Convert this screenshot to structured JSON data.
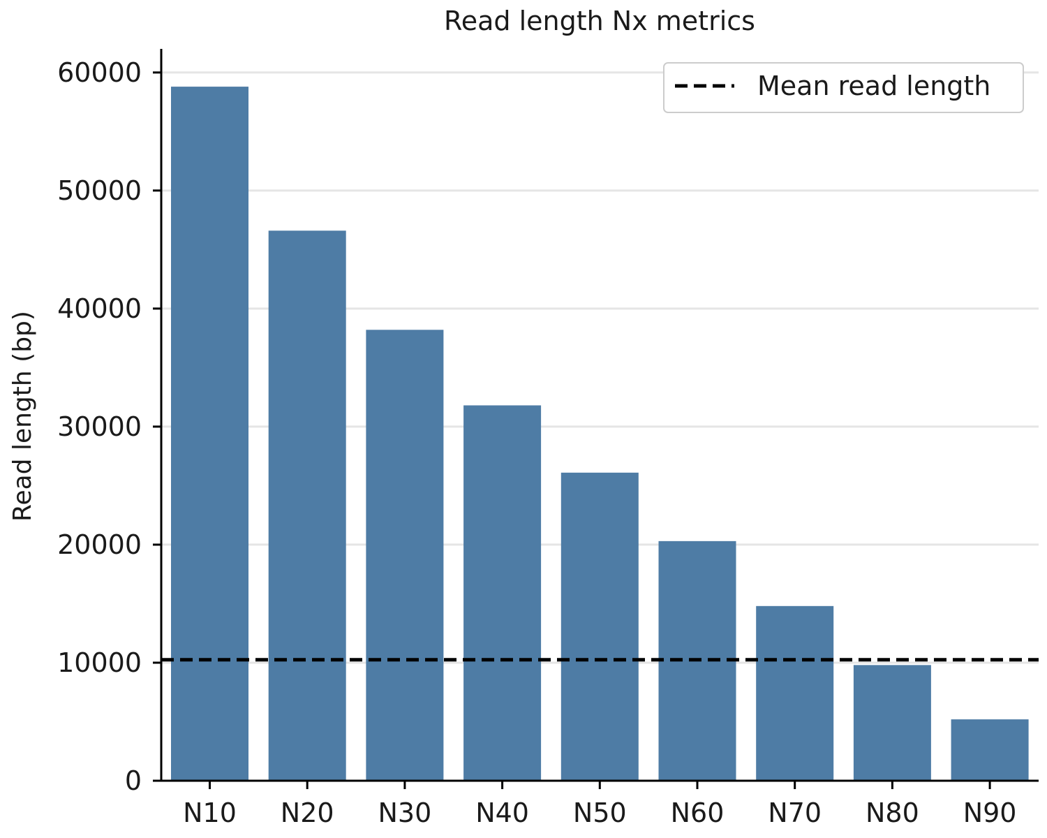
{
  "chart_data": {
    "type": "bar",
    "title": "Read length Nx metrics",
    "xlabel": "",
    "ylabel": "Read length (bp)",
    "categories": [
      "N10",
      "N20",
      "N30",
      "N40",
      "N50",
      "N60",
      "N70",
      "N80",
      "N90"
    ],
    "values": [
      58800,
      46600,
      38200,
      31800,
      26100,
      20300,
      14800,
      9800,
      5200
    ],
    "ylim": [
      0,
      62000
    ],
    "yticks": [
      0,
      10000,
      20000,
      30000,
      40000,
      50000,
      60000
    ],
    "ytick_labels": [
      "0",
      "10000",
      "20000",
      "30000",
      "40000",
      "50000",
      "60000"
    ],
    "mean_read_length": 10250,
    "legend": {
      "label": "Mean read length",
      "placement": "top-right"
    },
    "grid": "horizontal",
    "colors": {
      "bar": "#4e7ca5",
      "grid": "#e5e5e5",
      "axis": "#000000",
      "mean_line": "#000000"
    }
  }
}
